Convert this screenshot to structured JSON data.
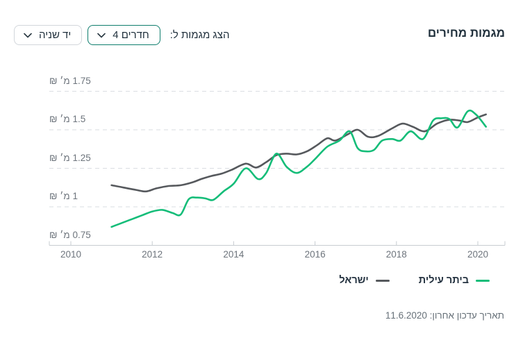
{
  "header": {
    "title": "מגמות מחירים",
    "controls": {
      "label": "הצג מגמות ל:",
      "rooms_dropdown": {
        "value": "4 חדרים"
      },
      "condition_dropdown": {
        "value": "יד שניה"
      }
    }
  },
  "chart_data": {
    "type": "line",
    "title": "מגמות מחירים",
    "grid": "dashed-horizontal",
    "legend_position": "bottom-right",
    "x_axis": {
      "range": [
        2009.47,
        2020.67
      ],
      "ticks": [
        2010,
        2012,
        2014,
        2016,
        2018,
        2020
      ]
    },
    "y_axis": {
      "unit": "מיליוני ₪",
      "range": [
        0.75,
        1.85
      ],
      "ticks": [
        {
          "value": 0.75,
          "label": "0.75 מ׳ ₪"
        },
        {
          "value": 1,
          "label": "1 מ׳ ₪"
        },
        {
          "value": 1.25,
          "label": "1.25 מ׳ ₪"
        },
        {
          "value": 1.5,
          "label": "1.5 מ׳ ₪"
        },
        {
          "value": 1.75,
          "label": "1.75 מ׳ ₪"
        }
      ]
    },
    "series": [
      {
        "name": "ישראל",
        "color": "#56595d",
        "points": [
          [
            2011.0,
            1.14
          ],
          [
            2011.3,
            1.125
          ],
          [
            2011.6,
            1.11
          ],
          [
            2011.85,
            1.1
          ],
          [
            2012.1,
            1.12
          ],
          [
            2012.4,
            1.135
          ],
          [
            2012.7,
            1.14
          ],
          [
            2013.0,
            1.16
          ],
          [
            2013.2,
            1.18
          ],
          [
            2013.45,
            1.2
          ],
          [
            2013.7,
            1.215
          ],
          [
            2013.95,
            1.24
          ],
          [
            2014.3,
            1.28
          ],
          [
            2014.55,
            1.255
          ],
          [
            2014.8,
            1.29
          ],
          [
            2015.05,
            1.335
          ],
          [
            2015.3,
            1.345
          ],
          [
            2015.55,
            1.34
          ],
          [
            2015.8,
            1.36
          ],
          [
            2016.05,
            1.4
          ],
          [
            2016.3,
            1.445
          ],
          [
            2016.5,
            1.43
          ],
          [
            2016.8,
            1.47
          ],
          [
            2017.05,
            1.5
          ],
          [
            2017.3,
            1.455
          ],
          [
            2017.55,
            1.46
          ],
          [
            2017.9,
            1.51
          ],
          [
            2018.15,
            1.54
          ],
          [
            2018.4,
            1.52
          ],
          [
            2018.7,
            1.49
          ],
          [
            2019.0,
            1.54
          ],
          [
            2019.3,
            1.565
          ],
          [
            2019.55,
            1.56
          ],
          [
            2019.75,
            1.55
          ],
          [
            2020.0,
            1.58
          ],
          [
            2020.2,
            1.6
          ]
        ]
      },
      {
        "name": "ביתר עילית",
        "color": "#15bd79",
        "points": [
          [
            2011.0,
            0.87
          ],
          [
            2011.25,
            0.895
          ],
          [
            2011.5,
            0.92
          ],
          [
            2011.75,
            0.945
          ],
          [
            2012.0,
            0.97
          ],
          [
            2012.25,
            0.98
          ],
          [
            2012.5,
            0.96
          ],
          [
            2012.7,
            0.95
          ],
          [
            2012.9,
            1.05
          ],
          [
            2013.1,
            1.06
          ],
          [
            2013.3,
            1.055
          ],
          [
            2013.5,
            1.045
          ],
          [
            2013.75,
            1.1
          ],
          [
            2014.0,
            1.15
          ],
          [
            2014.3,
            1.25
          ],
          [
            2014.6,
            1.18
          ],
          [
            2014.8,
            1.22
          ],
          [
            2015.05,
            1.345
          ],
          [
            2015.3,
            1.26
          ],
          [
            2015.55,
            1.22
          ],
          [
            2015.8,
            1.26
          ],
          [
            2016.0,
            1.31
          ],
          [
            2016.3,
            1.39
          ],
          [
            2016.6,
            1.43
          ],
          [
            2016.85,
            1.49
          ],
          [
            2017.05,
            1.38
          ],
          [
            2017.25,
            1.36
          ],
          [
            2017.45,
            1.37
          ],
          [
            2017.65,
            1.43
          ],
          [
            2017.9,
            1.44
          ],
          [
            2018.1,
            1.43
          ],
          [
            2018.35,
            1.49
          ],
          [
            2018.65,
            1.44
          ],
          [
            2018.9,
            1.56
          ],
          [
            2019.1,
            1.575
          ],
          [
            2019.3,
            1.57
          ],
          [
            2019.5,
            1.515
          ],
          [
            2019.75,
            1.62
          ],
          [
            2019.95,
            1.6
          ],
          [
            2020.2,
            1.52
          ]
        ]
      }
    ]
  },
  "footer": {
    "last_update": "תאריך עדכון אחרון: 11.6.2020"
  }
}
